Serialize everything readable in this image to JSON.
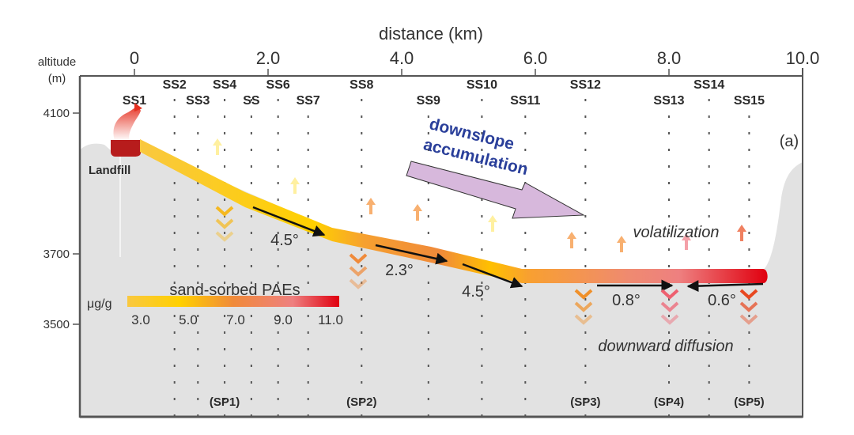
{
  "figure": {
    "panel_label": "(a)",
    "x_axis": {
      "title": "distance (km)",
      "ticks": [
        {
          "value": 0,
          "label": "0"
        },
        {
          "value": 2,
          "label": "2.0"
        },
        {
          "value": 4,
          "label": "4.0"
        },
        {
          "value": 6,
          "label": "6.0"
        },
        {
          "value": 8,
          "label": "8.0"
        },
        {
          "value": 10,
          "label": "10.0"
        }
      ]
    },
    "y_axis": {
      "title_line1": "altitude",
      "title_line2": "(m)",
      "ticks": [
        {
          "value": 4100,
          "label": "4100"
        },
        {
          "value": 3700,
          "label": "3700"
        },
        {
          "value": 3500,
          "label": "3500"
        }
      ]
    },
    "sites": [
      {
        "label": "SS1",
        "km": 0.0,
        "row": 2
      },
      {
        "label": "SS2",
        "km": 0.6,
        "row": 1
      },
      {
        "label": "SS3",
        "km": 0.95,
        "row": 2
      },
      {
        "label": "SS4",
        "km": 1.35,
        "row": 1
      },
      {
        "label": "SS",
        "km": 1.75,
        "row": 2
      },
      {
        "label": "SS6",
        "km": 2.15,
        "row": 1
      },
      {
        "label": "SS7",
        "km": 2.6,
        "row": 2
      },
      {
        "label": "SS8",
        "km": 3.4,
        "row": 1
      },
      {
        "label": "SS9",
        "km": 4.4,
        "row": 2
      },
      {
        "label": "SS10",
        "km": 5.2,
        "row": 1
      },
      {
        "label": "SS11",
        "km": 5.85,
        "row": 2
      },
      {
        "label": "SS12",
        "km": 6.75,
        "row": 1
      },
      {
        "label": "SS13",
        "km": 8.0,
        "row": 2
      },
      {
        "label": "SS14",
        "km": 8.6,
        "row": 1
      },
      {
        "label": "SS15",
        "km": 9.2,
        "row": 2
      }
    ],
    "profiles": [
      {
        "label": "(SP1)",
        "km": 1.35
      },
      {
        "label": "(SP2)",
        "km": 3.4
      },
      {
        "label": "(SP3)",
        "km": 6.75
      },
      {
        "label": "(SP4)",
        "km": 8.0
      },
      {
        "label": "(SP5)",
        "km": 9.2
      }
    ],
    "landfill_label": "Landfill",
    "slopes": [
      {
        "label": "4.5°"
      },
      {
        "label": "2.3°"
      },
      {
        "label": "4.5°"
      },
      {
        "label": "0.8°"
      },
      {
        "label": "0.6°"
      }
    ],
    "annotations": {
      "downslope_line1": "downslope",
      "downslope_line2": "accumulation",
      "volatilization": "volatilization",
      "downward_diffusion": "downward diffusion"
    },
    "colorbar": {
      "title": "sand-sorbed PAEs",
      "unit": "μg/g",
      "ticks": [
        "3.0",
        "5.0",
        "7.0",
        "9.0",
        "11.0"
      ],
      "colors": [
        "#f9c840",
        "#ffd000",
        "#f08a3a",
        "#ee8080",
        "#e0000f"
      ]
    },
    "colors": {
      "terrain": "#e2e2e2",
      "arrow_fill": "#d7b8dc",
      "annotation_blue": "#2a3f9a",
      "landfill_red": "#b71c1c"
    }
  }
}
